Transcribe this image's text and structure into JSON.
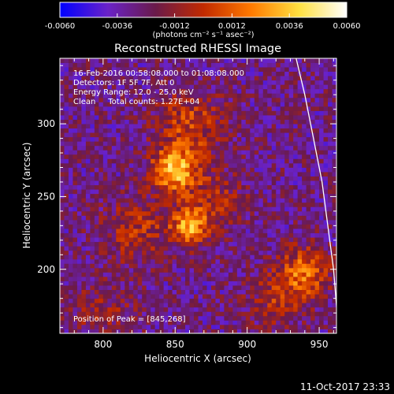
{
  "chart_data": {
    "type": "heatmap",
    "title": "Reconstructed RHESSI Image",
    "xlabel": "Heliocentric X (arcsec)",
    "ylabel": "Heliocentric Y (arcsec)",
    "xlim": [
      770,
      962
    ],
    "ylim": [
      156,
      345
    ],
    "xticks": [
      800,
      850,
      900,
      950
    ],
    "yticks": [
      200,
      250,
      300
    ],
    "colorbar": {
      "min": -0.006,
      "max": 0.006,
      "ticks": [
        "-0.0060",
        "-0.0036",
        "-0.0012",
        "0.0012",
        "0.0036",
        "0.0060"
      ],
      "label": "(photons cm⁻² s⁻¹ asec⁻²)",
      "stops": [
        "#0000ff",
        "#6a22c8",
        "#6a1a4a",
        "#c22a00",
        "#ff7a00",
        "#ffe040",
        "#ffffff"
      ]
    },
    "annotations": [
      "16-Feb-2016 00:58:08.000 to 01:08:08.000",
      "Detectors: 1F 5F 7F, Att 0",
      "Energy Range: 12.0 - 25.0 keV",
      "Clean     Total counts: 1.27E+04"
    ],
    "peak_label": "Position of Peak = [845,268]",
    "peak": [
      845,
      268
    ],
    "sources": [
      {
        "x": 850,
        "y": 268,
        "sigma": 11,
        "amp": 0.0062
      },
      {
        "x": 860,
        "y": 230,
        "sigma": 9,
        "amp": 0.0054
      },
      {
        "x": 860,
        "y": 300,
        "sigma": 16,
        "amp": 0.003
      },
      {
        "x": 823,
        "y": 228,
        "sigma": 15,
        "amp": 0.0026
      },
      {
        "x": 878,
        "y": 248,
        "sigma": 14,
        "amp": 0.002
      },
      {
        "x": 940,
        "y": 198,
        "sigma": 12,
        "amp": 0.0042
      },
      {
        "x": 920,
        "y": 180,
        "sigma": 13,
        "amp": 0.0022
      },
      {
        "x": 800,
        "y": 170,
        "sigma": 16,
        "amp": 0.0016
      }
    ],
    "background": -0.0028,
    "limb": [
      [
        934,
        345
      ],
      [
        940,
        320
      ],
      [
        946,
        290
      ],
      [
        952,
        260
      ],
      [
        956,
        230
      ],
      [
        960,
        200
      ],
      [
        962,
        175
      ],
      [
        963,
        156
      ]
    ]
  },
  "timestamp": "11-Oct-2017 23:33"
}
